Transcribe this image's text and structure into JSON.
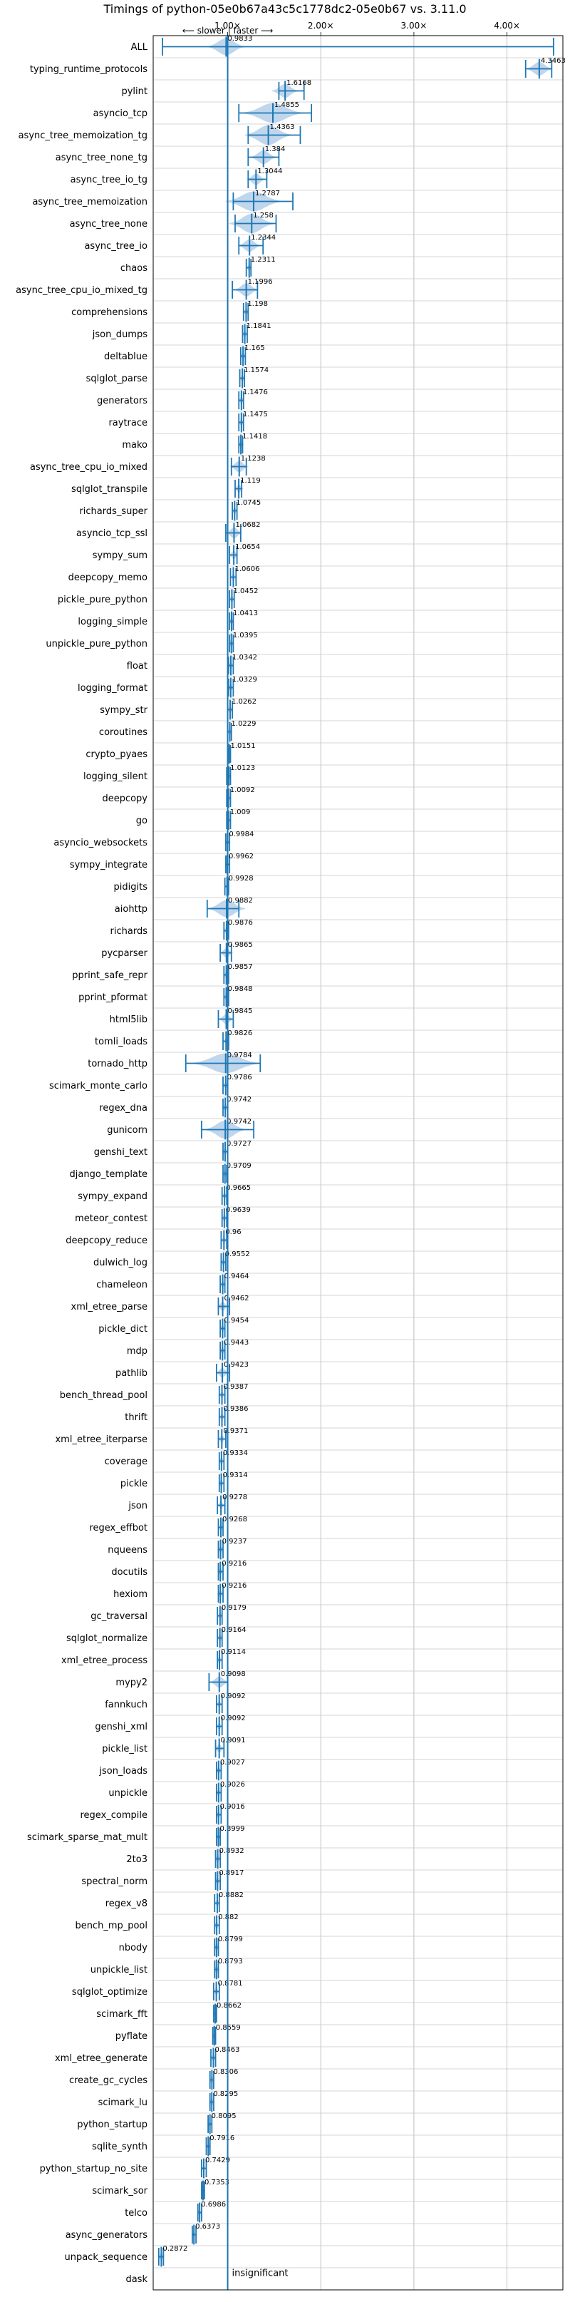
{
  "chart_data": {
    "type": "violin",
    "title": "Timings of python-05e0b67a43c5c1778dc2-05e0b67 vs. 3.11.0",
    "direction_label": "⟵ slower | faster ⟶",
    "insignificant_label": "insignificant",
    "xlim": [
      0.2,
      4.6
    ],
    "xticks": [
      1.0,
      2.0,
      3.0,
      4.0
    ],
    "xtick_labels": [
      "1.00×",
      "2.00×",
      "3.00×",
      "4.00×"
    ],
    "colors": {
      "violin": "#a9c8e6",
      "median": "#1f77b4"
    },
    "series": [
      {
        "name": "ALL",
        "value": 0.9833,
        "lo": 0.3,
        "hi": 4.5,
        "spread": 0.2
      },
      {
        "name": "typing_runtime_protocols",
        "value": 4.3463,
        "lo": 4.2,
        "hi": 4.48,
        "spread": 0.14
      },
      {
        "name": "pylint",
        "value": 1.6168,
        "lo": 1.55,
        "hi": 1.82,
        "spread": 0.14
      },
      {
        "name": "asyncio_tcp",
        "value": 1.4855,
        "lo": 1.12,
        "hi": 1.9,
        "spread": 0.32
      },
      {
        "name": "async_tree_memoization_tg",
        "value": 1.4363,
        "lo": 1.22,
        "hi": 1.78,
        "spread": 0.25
      },
      {
        "name": "async_tree_none_tg",
        "value": 1.384,
        "lo": 1.22,
        "hi": 1.55,
        "spread": 0.14
      },
      {
        "name": "async_tree_io_tg",
        "value": 1.3044,
        "lo": 1.22,
        "hi": 1.42,
        "spread": 0.1
      },
      {
        "name": "async_tree_memoization",
        "value": 1.2787,
        "lo": 1.06,
        "hi": 1.7,
        "spread": 0.3
      },
      {
        "name": "async_tree_none",
        "value": 1.258,
        "lo": 1.08,
        "hi": 1.52,
        "spread": 0.24
      },
      {
        "name": "async_tree_io",
        "value": 1.2344,
        "lo": 1.12,
        "hi": 1.38,
        "spread": 0.12
      },
      {
        "name": "chaos",
        "value": 1.2311,
        "lo": 1.2,
        "hi": 1.25,
        "spread": 0.03
      },
      {
        "name": "async_tree_cpu_io_mixed_tg",
        "value": 1.1996,
        "lo": 1.05,
        "hi": 1.32,
        "spread": 0.13
      },
      {
        "name": "comprehensions",
        "value": 1.198,
        "lo": 1.17,
        "hi": 1.22,
        "spread": 0.03
      },
      {
        "name": "json_dumps",
        "value": 1.1841,
        "lo": 1.16,
        "hi": 1.21,
        "spread": 0.03
      },
      {
        "name": "deltablue",
        "value": 1.165,
        "lo": 1.14,
        "hi": 1.19,
        "spread": 0.03
      },
      {
        "name": "sqlglot_parse",
        "value": 1.1574,
        "lo": 1.13,
        "hi": 1.18,
        "spread": 0.03
      },
      {
        "name": "generators",
        "value": 1.1476,
        "lo": 1.12,
        "hi": 1.17,
        "spread": 0.03
      },
      {
        "name": "raytrace",
        "value": 1.1475,
        "lo": 1.12,
        "hi": 1.17,
        "spread": 0.03
      },
      {
        "name": "mako",
        "value": 1.1418,
        "lo": 1.12,
        "hi": 1.16,
        "spread": 0.03
      },
      {
        "name": "async_tree_cpu_io_mixed",
        "value": 1.1238,
        "lo": 1.04,
        "hi": 1.2,
        "spread": 0.1
      },
      {
        "name": "sqlglot_transpile",
        "value": 1.119,
        "lo": 1.08,
        "hi": 1.15,
        "spread": 0.05
      },
      {
        "name": "richards_super",
        "value": 1.0745,
        "lo": 1.05,
        "hi": 1.1,
        "spread": 0.03
      },
      {
        "name": "asyncio_tcp_ssl",
        "value": 1.0682,
        "lo": 0.98,
        "hi": 1.14,
        "spread": 0.09
      },
      {
        "name": "sympy_sum",
        "value": 1.0654,
        "lo": 1.02,
        "hi": 1.1,
        "spread": 0.05
      },
      {
        "name": "deepcopy_memo",
        "value": 1.0606,
        "lo": 1.03,
        "hi": 1.09,
        "spread": 0.03
      },
      {
        "name": "pickle_pure_python",
        "value": 1.0452,
        "lo": 1.02,
        "hi": 1.07,
        "spread": 0.03
      },
      {
        "name": "logging_simple",
        "value": 1.0413,
        "lo": 1.02,
        "hi": 1.06,
        "spread": 0.03
      },
      {
        "name": "unpickle_pure_python",
        "value": 1.0395,
        "lo": 1.02,
        "hi": 1.06,
        "spread": 0.03
      },
      {
        "name": "float",
        "value": 1.0342,
        "lo": 1.01,
        "hi": 1.06,
        "spread": 0.03
      },
      {
        "name": "logging_format",
        "value": 1.0329,
        "lo": 1.01,
        "hi": 1.06,
        "spread": 0.03
      },
      {
        "name": "sympy_str",
        "value": 1.0262,
        "lo": 1.0,
        "hi": 1.05,
        "spread": 0.03
      },
      {
        "name": "coroutines",
        "value": 1.0229,
        "lo": 1.0,
        "hi": 1.04,
        "spread": 0.03
      },
      {
        "name": "crypto_pyaes",
        "value": 1.0151,
        "lo": 1.0,
        "hi": 1.03,
        "spread": 0.02
      },
      {
        "name": "logging_silent",
        "value": 1.0123,
        "lo": 0.99,
        "hi": 1.03,
        "spread": 0.02
      },
      {
        "name": "deepcopy",
        "value": 1.0092,
        "lo": 0.99,
        "hi": 1.03,
        "spread": 0.02
      },
      {
        "name": "go",
        "value": 1.009,
        "lo": 0.99,
        "hi": 1.03,
        "spread": 0.02
      },
      {
        "name": "asyncio_websockets",
        "value": 0.9984,
        "lo": 0.98,
        "hi": 1.02,
        "spread": 0.02
      },
      {
        "name": "sympy_integrate",
        "value": 0.9962,
        "lo": 0.98,
        "hi": 1.02,
        "spread": 0.02
      },
      {
        "name": "pidigits",
        "value": 0.9928,
        "lo": 0.97,
        "hi": 1.01,
        "spread": 0.02
      },
      {
        "name": "aiohttp",
        "value": 0.9882,
        "lo": 0.78,
        "hi": 1.12,
        "spread": 0.2
      },
      {
        "name": "richards",
        "value": 0.9876,
        "lo": 0.96,
        "hi": 1.01,
        "spread": 0.03
      },
      {
        "name": "pycparser",
        "value": 0.9865,
        "lo": 0.92,
        "hi": 1.04,
        "spread": 0.07
      },
      {
        "name": "pprint_safe_repr",
        "value": 0.9857,
        "lo": 0.96,
        "hi": 1.01,
        "spread": 0.03
      },
      {
        "name": "pprint_pformat",
        "value": 0.9848,
        "lo": 0.96,
        "hi": 1.01,
        "spread": 0.03
      },
      {
        "name": "html5lib",
        "value": 0.9845,
        "lo": 0.9,
        "hi": 1.06,
        "spread": 0.08
      },
      {
        "name": "tomli_loads",
        "value": 0.9826,
        "lo": 0.95,
        "hi": 1.01,
        "spread": 0.03
      },
      {
        "name": "tornado_http",
        "value": 0.9784,
        "lo": 0.55,
        "hi": 1.35,
        "spread": 0.36
      },
      {
        "name": "scimark_monte_carlo",
        "value": 0.9786,
        "lo": 0.95,
        "hi": 1.0,
        "spread": 0.03
      },
      {
        "name": "regex_dna",
        "value": 0.9742,
        "lo": 0.95,
        "hi": 1.0,
        "spread": 0.03
      },
      {
        "name": "gunicorn",
        "value": 0.9742,
        "lo": 0.72,
        "hi": 1.28,
        "spread": 0.22
      },
      {
        "name": "genshi_text",
        "value": 0.9727,
        "lo": 0.95,
        "hi": 1.0,
        "spread": 0.03
      },
      {
        "name": "django_template",
        "value": 0.9709,
        "lo": 0.95,
        "hi": 0.99,
        "spread": 0.03
      },
      {
        "name": "sympy_expand",
        "value": 0.9665,
        "lo": 0.94,
        "hi": 0.99,
        "spread": 0.03
      },
      {
        "name": "meteor_contest",
        "value": 0.9639,
        "lo": 0.94,
        "hi": 0.99,
        "spread": 0.03
      },
      {
        "name": "deepcopy_reduce",
        "value": 0.96,
        "lo": 0.93,
        "hi": 0.99,
        "spread": 0.03
      },
      {
        "name": "dulwich_log",
        "value": 0.9552,
        "lo": 0.93,
        "hi": 0.98,
        "spread": 0.03
      },
      {
        "name": "chameleon",
        "value": 0.9464,
        "lo": 0.92,
        "hi": 0.97,
        "spread": 0.03
      },
      {
        "name": "xml_etree_parse",
        "value": 0.9462,
        "lo": 0.9,
        "hi": 1.02,
        "spread": 0.06
      },
      {
        "name": "pickle_dict",
        "value": 0.9454,
        "lo": 0.92,
        "hi": 0.97,
        "spread": 0.03
      },
      {
        "name": "mdp",
        "value": 0.9443,
        "lo": 0.92,
        "hi": 0.97,
        "spread": 0.03
      },
      {
        "name": "pathlib",
        "value": 0.9423,
        "lo": 0.88,
        "hi": 1.02,
        "spread": 0.07
      },
      {
        "name": "bench_thread_pool",
        "value": 0.9387,
        "lo": 0.91,
        "hi": 0.97,
        "spread": 0.03
      },
      {
        "name": "thrift",
        "value": 0.9386,
        "lo": 0.91,
        "hi": 0.97,
        "spread": 0.03
      },
      {
        "name": "xml_etree_iterparse",
        "value": 0.9371,
        "lo": 0.9,
        "hi": 0.98,
        "spread": 0.04
      },
      {
        "name": "coverage",
        "value": 0.9334,
        "lo": 0.91,
        "hi": 0.96,
        "spread": 0.03
      },
      {
        "name": "pickle",
        "value": 0.9314,
        "lo": 0.91,
        "hi": 0.96,
        "spread": 0.03
      },
      {
        "name": "json",
        "value": 0.9278,
        "lo": 0.89,
        "hi": 0.97,
        "spread": 0.04
      },
      {
        "name": "regex_effbot",
        "value": 0.9268,
        "lo": 0.9,
        "hi": 0.95,
        "spread": 0.03
      },
      {
        "name": "nqueens",
        "value": 0.9237,
        "lo": 0.9,
        "hi": 0.95,
        "spread": 0.03
      },
      {
        "name": "docutils",
        "value": 0.9216,
        "lo": 0.9,
        "hi": 0.95,
        "spread": 0.03
      },
      {
        "name": "hexiom",
        "value": 0.9216,
        "lo": 0.9,
        "hi": 0.95,
        "spread": 0.03
      },
      {
        "name": "gc_traversal",
        "value": 0.9179,
        "lo": 0.89,
        "hi": 0.94,
        "spread": 0.03
      },
      {
        "name": "sqlglot_normalize",
        "value": 0.9164,
        "lo": 0.89,
        "hi": 0.94,
        "spread": 0.03
      },
      {
        "name": "xml_etree_process",
        "value": 0.9114,
        "lo": 0.89,
        "hi": 0.94,
        "spread": 0.03
      },
      {
        "name": "mypy2",
        "value": 0.9098,
        "lo": 0.8,
        "hi": 1.0,
        "spread": 0.1
      },
      {
        "name": "fannkuch",
        "value": 0.9092,
        "lo": 0.88,
        "hi": 0.94,
        "spread": 0.03
      },
      {
        "name": "genshi_xml",
        "value": 0.9092,
        "lo": 0.88,
        "hi": 0.94,
        "spread": 0.03
      },
      {
        "name": "pickle_list",
        "value": 0.9091,
        "lo": 0.87,
        "hi": 0.96,
        "spread": 0.05
      },
      {
        "name": "json_loads",
        "value": 0.9027,
        "lo": 0.88,
        "hi": 0.93,
        "spread": 0.03
      },
      {
        "name": "unpickle",
        "value": 0.9026,
        "lo": 0.88,
        "hi": 0.93,
        "spread": 0.03
      },
      {
        "name": "regex_compile",
        "value": 0.9016,
        "lo": 0.88,
        "hi": 0.93,
        "spread": 0.03
      },
      {
        "name": "scimark_sparse_mat_mult",
        "value": 0.8999,
        "lo": 0.88,
        "hi": 0.92,
        "spread": 0.02
      },
      {
        "name": "2to3",
        "value": 0.8932,
        "lo": 0.87,
        "hi": 0.92,
        "spread": 0.03
      },
      {
        "name": "spectral_norm",
        "value": 0.8917,
        "lo": 0.87,
        "hi": 0.92,
        "spread": 0.03
      },
      {
        "name": "regex_v8",
        "value": 0.8882,
        "lo": 0.86,
        "hi": 0.91,
        "spread": 0.03
      },
      {
        "name": "bench_mp_pool",
        "value": 0.882,
        "lo": 0.86,
        "hi": 0.91,
        "spread": 0.03
      },
      {
        "name": "nbody",
        "value": 0.8799,
        "lo": 0.86,
        "hi": 0.9,
        "spread": 0.03
      },
      {
        "name": "unpickle_list",
        "value": 0.8793,
        "lo": 0.86,
        "hi": 0.9,
        "spread": 0.03
      },
      {
        "name": "sqlglot_optimize",
        "value": 0.8781,
        "lo": 0.85,
        "hi": 0.91,
        "spread": 0.03
      },
      {
        "name": "scimark_fft",
        "value": 0.8662,
        "lo": 0.85,
        "hi": 0.88,
        "spread": 0.02
      },
      {
        "name": "pyflate",
        "value": 0.8559,
        "lo": 0.84,
        "hi": 0.87,
        "spread": 0.02
      },
      {
        "name": "xml_etree_generate",
        "value": 0.8463,
        "lo": 0.82,
        "hi": 0.87,
        "spread": 0.03
      },
      {
        "name": "create_gc_cycles",
        "value": 0.8306,
        "lo": 0.81,
        "hi": 0.85,
        "spread": 0.03
      },
      {
        "name": "scimark_lu",
        "value": 0.8295,
        "lo": 0.81,
        "hi": 0.85,
        "spread": 0.03
      },
      {
        "name": "python_startup",
        "value": 0.8095,
        "lo": 0.79,
        "hi": 0.83,
        "spread": 0.02
      },
      {
        "name": "sqlite_synth",
        "value": 0.7916,
        "lo": 0.77,
        "hi": 0.81,
        "spread": 0.02
      },
      {
        "name": "python_startup_no_site",
        "value": 0.7429,
        "lo": 0.72,
        "hi": 0.77,
        "spread": 0.02
      },
      {
        "name": "scimark_sor",
        "value": 0.7353,
        "lo": 0.72,
        "hi": 0.75,
        "spread": 0.02
      },
      {
        "name": "telco",
        "value": 0.6986,
        "lo": 0.68,
        "hi": 0.72,
        "spread": 0.02
      },
      {
        "name": "async_generators",
        "value": 0.6373,
        "lo": 0.62,
        "hi": 0.66,
        "spread": 0.02
      },
      {
        "name": "unpack_sequence",
        "value": 0.2872,
        "lo": 0.26,
        "hi": 0.31,
        "spread": 0.03
      },
      {
        "name": "dask",
        "value": null,
        "lo": null,
        "hi": null,
        "spread": 0
      }
    ]
  }
}
